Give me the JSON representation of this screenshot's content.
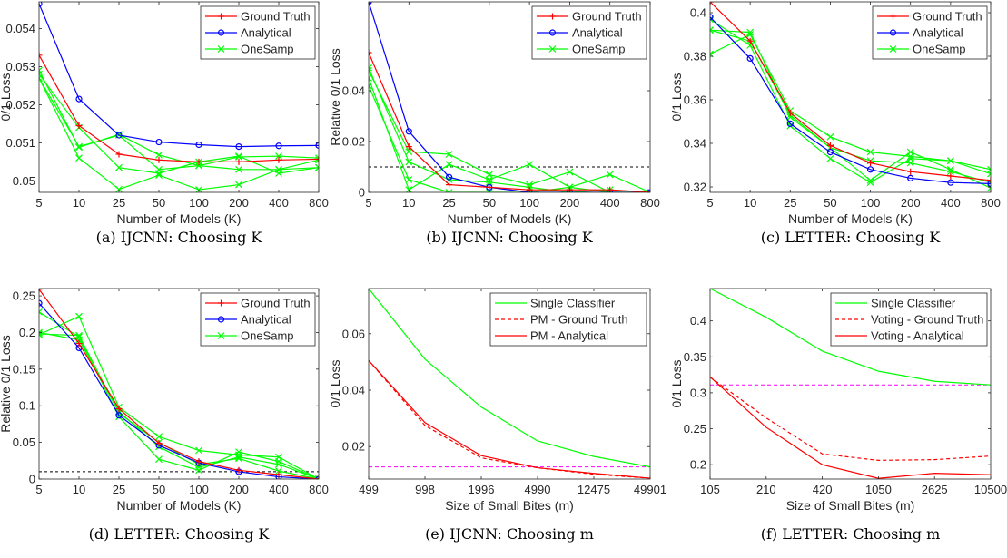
{
  "chart_data": [
    {
      "type": "line",
      "caption": "(a) IJCNN: Choosing K",
      "xlabel": "Number of Models (K)",
      "ylabel": "0/1 Loss",
      "x_tick_labels": [
        "5",
        "10",
        "25",
        "50",
        "100",
        "200",
        "400",
        "800"
      ],
      "y_ticks": [
        0.05,
        0.051,
        0.052,
        0.053,
        0.054
      ],
      "y_tick_labels": [
        "0.05",
        "0.051",
        "0.052",
        "0.053",
        "0.054"
      ],
      "ylim": [
        0.0497,
        0.0547
      ],
      "legend": "top-right",
      "legend_entries": [
        "Ground Truth",
        "Analytical",
        "OneSamp"
      ],
      "series": [
        {
          "name": "Ground Truth",
          "color": "#ff0000",
          "marker": "plus",
          "values": [
            0.0533,
            0.05145,
            0.0507,
            0.05055,
            0.0505,
            0.0505,
            0.05055,
            0.05057
          ]
        },
        {
          "name": "Analytical",
          "color": "#0000ff",
          "marker": "circle",
          "values": [
            0.05465,
            0.05215,
            0.0512,
            0.05102,
            0.05095,
            0.0509,
            0.05092,
            0.05093
          ]
        },
        {
          "color": "#00ff00",
          "marker": "x",
          "values": [
            0.0529,
            0.05088,
            0.05122,
            0.05068,
            0.0504,
            0.05063,
            0.05065,
            0.0506
          ]
        },
        {
          "color": "#00ff00",
          "marker": "x",
          "values": [
            0.0527,
            0.0506,
            0.04978,
            0.05015,
            0.04977,
            0.0499,
            0.0503,
            0.05055
          ]
        },
        {
          "color": "#00ff00",
          "marker": "x",
          "values": [
            0.0528,
            0.0514,
            0.05035,
            0.0502,
            0.0505,
            0.05065,
            0.0502,
            0.05035
          ]
        },
        {
          "color": "#00ff00",
          "marker": "x",
          "values": [
            0.0527,
            0.0509,
            0.0512,
            0.0503,
            0.0504,
            0.0503,
            0.0503,
            0.05035
          ]
        }
      ]
    },
    {
      "type": "line",
      "caption": "(b) IJCNN: Choosing K",
      "xlabel": "Number of Models (K)",
      "ylabel": "Relative 0/1 Loss",
      "x_tick_labels": [
        "5",
        "10",
        "25",
        "50",
        "100",
        "200",
        "400",
        "800"
      ],
      "y_ticks": [
        0,
        0.02,
        0.04
      ],
      "y_tick_labels": [
        "0",
        "0.02",
        "0.04"
      ],
      "ylim": [
        0,
        0.075
      ],
      "reference_line": 0.01,
      "legend": "top-right",
      "legend_entries": [
        "Ground Truth",
        "Analytical",
        "OneSamp"
      ],
      "series": [
        {
          "name": "Ground Truth",
          "color": "#ff0000",
          "marker": "plus",
          "values": [
            0.055,
            0.018,
            0.003,
            0.002,
            0.001,
            0.001,
            0.001,
            0.0
          ]
        },
        {
          "name": "Analytical",
          "color": "#0000ff",
          "marker": "circle",
          "values": [
            0.075,
            0.024,
            0.006,
            0.002,
            0.0,
            0.0,
            0.0,
            0.0
          ]
        },
        {
          "color": "#00ff00",
          "marker": "x",
          "values": [
            0.048,
            0.016,
            0.015,
            0.007,
            0.003,
            0.008,
            0.0,
            0.0
          ]
        },
        {
          "color": "#00ff00",
          "marker": "x",
          "values": [
            0.045,
            0.001,
            0.011,
            0.005,
            0.011,
            0.002,
            0.007,
            0.0
          ]
        },
        {
          "color": "#00ff00",
          "marker": "x",
          "values": [
            0.042,
            0.005,
            0.0,
            0.0,
            0.0,
            0.002,
            0.0,
            0.0
          ]
        },
        {
          "color": "#00ff00",
          "marker": "x",
          "values": [
            0.049,
            0.012,
            0.005,
            0.004,
            0.002,
            0.0,
            0.001,
            0.0
          ]
        }
      ]
    },
    {
      "type": "line",
      "caption": "(c) LETTER: Choosing K",
      "xlabel": "Number of Models (K)",
      "ylabel": "0/1 Loss",
      "x_tick_labels": [
        "5",
        "10",
        "25",
        "50",
        "100",
        "200",
        "400",
        "800"
      ],
      "y_ticks": [
        0.32,
        0.34,
        0.36,
        0.38,
        0.4
      ],
      "y_tick_labels": [
        "0.32",
        "0.34",
        "0.36",
        "0.38",
        "0.4"
      ],
      "ylim": [
        0.3175,
        0.405
      ],
      "legend": "top-right",
      "legend_entries": [
        "Ground Truth",
        "Analytical",
        "OneSamp"
      ],
      "series": [
        {
          "name": "Ground Truth",
          "color": "#ff0000",
          "marker": "plus",
          "values": [
            0.405,
            0.387,
            0.354,
            0.339,
            0.331,
            0.327,
            0.325,
            0.323
          ]
        },
        {
          "name": "Analytical",
          "color": "#0000ff",
          "marker": "circle",
          "values": [
            0.398,
            0.379,
            0.349,
            0.336,
            0.328,
            0.324,
            0.322,
            0.3215
          ]
        },
        {
          "color": "#00ff00",
          "marker": "x",
          "values": [
            0.381,
            0.39,
            0.355,
            0.343,
            0.336,
            0.334,
            0.332,
            0.328
          ]
        },
        {
          "color": "#00ff00",
          "marker": "x",
          "values": [
            0.392,
            0.391,
            0.352,
            0.338,
            0.323,
            0.336,
            0.328,
            0.3195
          ]
        },
        {
          "color": "#00ff00",
          "marker": "x",
          "values": [
            0.397,
            0.385,
            0.348,
            0.333,
            0.322,
            0.333,
            0.332,
            0.326
          ]
        },
        {
          "color": "#00ff00",
          "marker": "x",
          "values": [
            0.392,
            0.387,
            0.353,
            0.338,
            0.332,
            0.331,
            0.327,
            0.322
          ]
        }
      ]
    },
    {
      "type": "line",
      "caption": "(d) LETTER: Choosing K",
      "xlabel": "Number of Models (K)",
      "ylabel": "Relative 0/1 Loss",
      "x_tick_labels": [
        "5",
        "10",
        "25",
        "50",
        "100",
        "200",
        "400",
        "800"
      ],
      "y_ticks": [
        0,
        0.05,
        0.1,
        0.15,
        0.2,
        0.25
      ],
      "y_tick_labels": [
        "0",
        "0.05",
        "0.1",
        "0.15",
        "0.2",
        "0.25"
      ],
      "ylim": [
        0,
        0.26
      ],
      "reference_line": 0.01,
      "legend": "top-right",
      "legend_entries": [
        "Ground Truth",
        "Analytical",
        "OneSamp"
      ],
      "series": [
        {
          "name": "Ground Truth",
          "color": "#ff0000",
          "marker": "plus",
          "values": [
            0.259,
            0.185,
            0.096,
            0.049,
            0.024,
            0.012,
            0.006,
            0.0
          ]
        },
        {
          "name": "Analytical",
          "color": "#0000ff",
          "marker": "circle",
          "values": [
            0.24,
            0.179,
            0.087,
            0.046,
            0.022,
            0.01,
            0.003,
            0.0
          ]
        },
        {
          "color": "#00ff00",
          "marker": "x",
          "values": [
            0.197,
            0.222,
            0.098,
            0.058,
            0.039,
            0.033,
            0.03,
            0.0
          ]
        },
        {
          "color": "#00ff00",
          "marker": "x",
          "values": [
            0.228,
            0.194,
            0.085,
            0.027,
            0.012,
            0.037,
            0.024,
            0.0
          ]
        },
        {
          "color": "#00ff00",
          "marker": "x",
          "values": [
            0.198,
            0.196,
            0.09,
            0.05,
            0.02,
            0.028,
            0.011,
            0.0
          ]
        },
        {
          "color": "#00ff00",
          "marker": "x",
          "values": [
            0.2,
            0.19,
            0.092,
            0.044,
            0.016,
            0.03,
            0.02,
            0.0
          ]
        }
      ]
    },
    {
      "type": "line",
      "caption": "(e) IJCNN: Choosing m",
      "xlabel": "Size of Small Bites (m)",
      "ylabel": "0/1 Loss",
      "x_tick_labels": [
        "499",
        "998",
        "1996",
        "4990",
        "12475",
        "49901"
      ],
      "y_ticks": [
        0.02,
        0.04,
        0.06
      ],
      "y_tick_labels": [
        "0.02",
        "0.04",
        "0.06"
      ],
      "ylim": [
        0.0085,
        0.076
      ],
      "reference_line": 0.0128,
      "legend": "top-right",
      "legend_entries": [
        "Single Classifier",
        "PM - Ground Truth",
        "PM - Analytical"
      ],
      "series": [
        {
          "name": "Single Classifier",
          "color": "#00ff00",
          "style": "solid",
          "values": [
            0.076,
            0.051,
            0.034,
            0.022,
            0.0165,
            0.0128
          ]
        },
        {
          "name": "PM - Ground Truth",
          "color": "#ff0000",
          "style": "dashed",
          "values": [
            0.0505,
            0.0275,
            0.016,
            0.0125,
            0.0102,
            0.0088
          ]
        },
        {
          "name": "PM - Analytical",
          "color": "#ff0000",
          "style": "solid",
          "values": [
            0.0505,
            0.0285,
            0.0168,
            0.0125,
            0.0105,
            0.0088
          ]
        }
      ]
    },
    {
      "type": "line",
      "caption": "(f) LETTER: Choosing m",
      "xlabel": "Size of Small Bites (m)",
      "ylabel": "0/1 Loss",
      "x_tick_labels": [
        "105",
        "210",
        "420",
        "1050",
        "2625",
        "10500"
      ],
      "y_ticks": [
        0.2,
        0.25,
        0.3,
        0.35,
        0.4
      ],
      "y_tick_labels": [
        "0.2",
        "0.25",
        "0.3",
        "0.35",
        "0.4"
      ],
      "ylim": [
        0.18,
        0.445
      ],
      "reference_line": 0.311,
      "legend": "top-right",
      "legend_entries": [
        "Single Classifier",
        "Voting - Ground Truth",
        "Voting - Analytical"
      ],
      "series": [
        {
          "name": "Single Classifier",
          "color": "#00ff00",
          "style": "solid",
          "values": [
            0.445,
            0.405,
            0.358,
            0.33,
            0.316,
            0.311
          ]
        },
        {
          "name": "Voting - Ground Truth",
          "color": "#ff0000",
          "style": "dashed",
          "values": [
            0.322,
            0.265,
            0.215,
            0.206,
            0.207,
            0.212
          ]
        },
        {
          "name": "Voting - Analytical",
          "color": "#ff0000",
          "style": "solid",
          "values": [
            0.322,
            0.252,
            0.2,
            0.181,
            0.188,
            0.186
          ]
        }
      ]
    }
  ]
}
